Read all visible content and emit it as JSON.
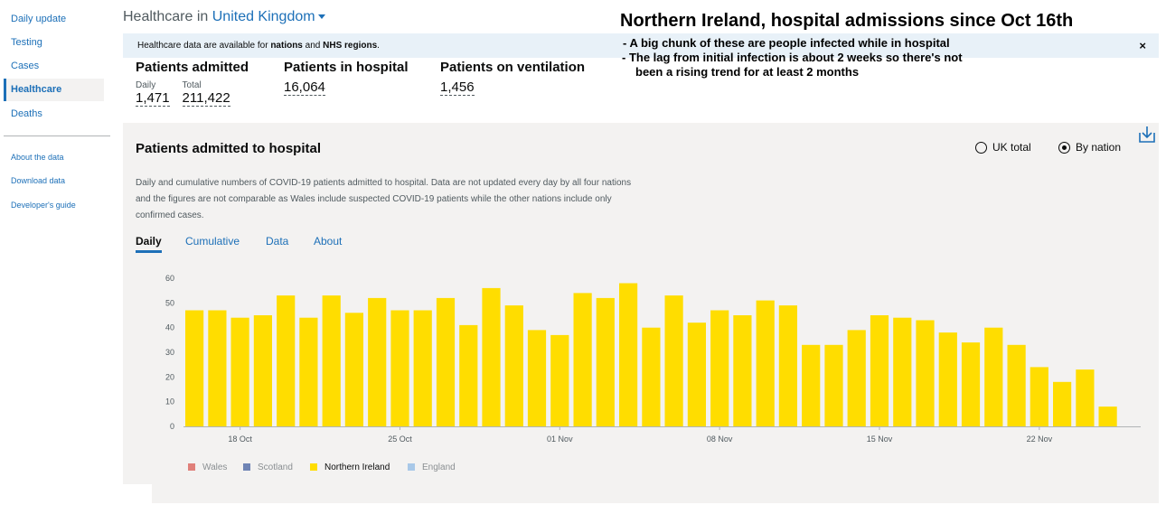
{
  "sidebar": {
    "items": [
      {
        "label": "Daily update"
      },
      {
        "label": "Testing"
      },
      {
        "label": "Cases"
      },
      {
        "label": "Healthcare"
      },
      {
        "label": "Deaths"
      }
    ],
    "links": [
      {
        "label": "About the data"
      },
      {
        "label": "Download data"
      },
      {
        "label": "Developer's guide"
      }
    ]
  },
  "header": {
    "prefix": "Healthcare in",
    "area": "United Kingdom"
  },
  "notice": {
    "before": "Healthcare data are available for ",
    "nations": "nations",
    "and": " and ",
    "regions": "NHS regions",
    "end": ".",
    "close": "×"
  },
  "annotation": {
    "title": "Northern Ireland, hospital admissions since Oct 16th",
    "lines": [
      "- A big chunk of these are people infected while in hospital",
      "-  The lag from initial infection is about 2 weeks so there's not",
      "been a rising trend for at least 2 months"
    ]
  },
  "headlines": {
    "admitted": {
      "label": "Patients admitted",
      "daily_label": "Daily",
      "daily_value": "1,471",
      "total_label": "Total",
      "total_value": "211,422"
    },
    "in_hospital": {
      "label": "Patients in hospital",
      "value": "16,064"
    },
    "ventilation": {
      "label": "Patients on ventilation",
      "value": "1,456"
    }
  },
  "card": {
    "title": "Patients admitted to hospital",
    "radio_uk": "UK total",
    "radio_nation": "By nation",
    "description": "Daily and cumulative numbers of COVID-19 patients admitted to hospital. Data are not updated every day by all four nations and the figures are not comparable as Wales include suspected COVID-19 patients while the other nations include only confirmed cases.",
    "tabs": [
      "Daily",
      "Cumulative",
      "Data",
      "About"
    ]
  },
  "chart_data": {
    "type": "bar",
    "x": [
      "16 Oct",
      "17 Oct",
      "18 Oct",
      "19 Oct",
      "20 Oct",
      "21 Oct",
      "22 Oct",
      "23 Oct",
      "24 Oct",
      "25 Oct",
      "26 Oct",
      "27 Oct",
      "28 Oct",
      "29 Oct",
      "30 Oct",
      "31 Oct",
      "01 Nov",
      "02 Nov",
      "03 Nov",
      "04 Nov",
      "05 Nov",
      "06 Nov",
      "07 Nov",
      "08 Nov",
      "09 Nov",
      "10 Nov",
      "11 Nov",
      "12 Nov",
      "13 Nov",
      "14 Nov",
      "15 Nov",
      "16 Nov",
      "17 Nov",
      "18 Nov",
      "19 Nov",
      "20 Nov",
      "21 Nov",
      "22 Nov",
      "23 Nov",
      "24 Nov",
      "25 Nov"
    ],
    "series": [
      {
        "name": "Northern Ireland",
        "color": "#ffdd00",
        "values": [
          47,
          47,
          44,
          45,
          53,
          44,
          53,
          46,
          52,
          47,
          47,
          52,
          41,
          56,
          49,
          39,
          37,
          54,
          52,
          58,
          40,
          53,
          42,
          47,
          45,
          51,
          49,
          33,
          33,
          39,
          45,
          44,
          43,
          38,
          34,
          40,
          33,
          24,
          18,
          23,
          8
        ]
      }
    ],
    "xticks": [
      "18 Oct",
      "25 Oct",
      "01 Nov",
      "08 Nov",
      "15 Nov",
      "22 Nov"
    ],
    "yticks": [
      0,
      10,
      20,
      30,
      40,
      50,
      60
    ],
    "ylim": [
      0,
      60
    ],
    "grid": false,
    "legend": [
      {
        "name": "Wales",
        "color": "#e0807a"
      },
      {
        "name": "Scotland",
        "color": "#6f84b5"
      },
      {
        "name": "Northern Ireland",
        "color": "#ffdd00"
      },
      {
        "name": "England",
        "color": "#a8c8e8"
      }
    ],
    "legend_position": "bottom-left"
  }
}
